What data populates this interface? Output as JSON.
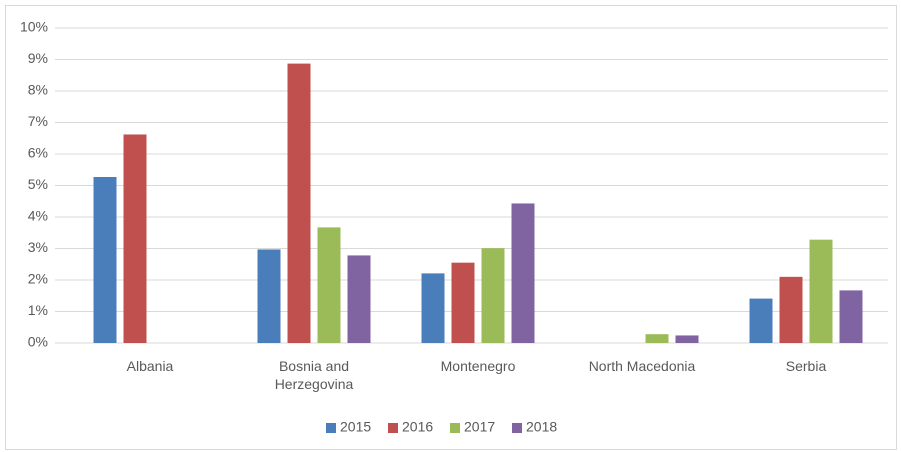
{
  "chart_data": {
    "type": "bar",
    "categories": [
      "Albania",
      "Bosnia and Herzegovina",
      "Montenegro",
      "North Macedonia",
      "Serbia"
    ],
    "series": [
      {
        "name": "2015",
        "color": "#4a7ebb",
        "values": [
          5.27,
          2.97,
          2.21,
          null,
          1.41
        ]
      },
      {
        "name": "2016",
        "color": "#c0504d",
        "values": [
          6.62,
          8.87,
          2.55,
          null,
          2.1
        ]
      },
      {
        "name": "2017",
        "color": "#9bbb59",
        "values": [
          null,
          3.67,
          3.01,
          0.28,
          3.28
        ]
      },
      {
        "name": "2018",
        "color": "#8064a2",
        "values": [
          null,
          2.78,
          4.43,
          0.24,
          1.67
        ]
      }
    ],
    "ylim": [
      0,
      10
    ],
    "yticks": [
      {
        "value": 0,
        "label": "0%"
      },
      {
        "value": 1,
        "label": "1%"
      },
      {
        "value": 2,
        "label": "2%"
      },
      {
        "value": 3,
        "label": "3%"
      },
      {
        "value": 4,
        "label": "4%"
      },
      {
        "value": 5,
        "label": "5%"
      },
      {
        "value": 6,
        "label": "6%"
      },
      {
        "value": 7,
        "label": "7%"
      },
      {
        "value": 8,
        "label": "8%"
      },
      {
        "value": 9,
        "label": "9%"
      },
      {
        "value": 10,
        "label": "10%"
      }
    ],
    "grid": true,
    "legend": "bottom"
  }
}
